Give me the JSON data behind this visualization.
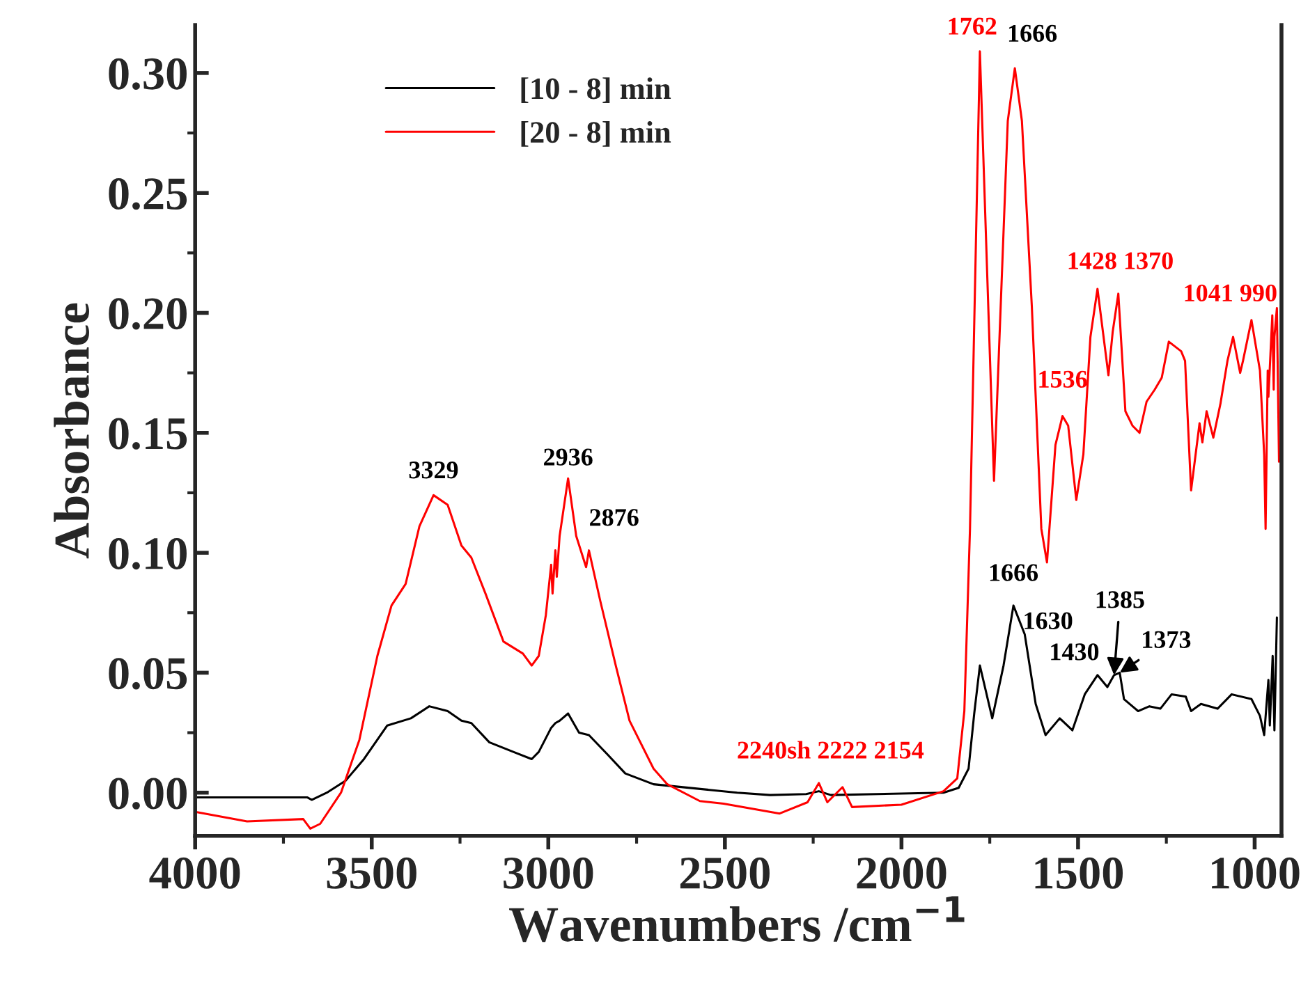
{
  "chart_data": {
    "type": "line",
    "xlabel": "Wavenumbers /cm$^{−1}$",
    "ylabel": "Absorbance",
    "xlim": [
      4000,
      924
    ],
    "ylim": [
      -0.018,
      0.32
    ],
    "xticks": [
      4000,
      3500,
      3000,
      2500,
      2000,
      1500,
      1000
    ],
    "yticks": [
      {
        "value": 0,
        "label": "0.00"
      },
      {
        "value": 0.05,
        "label": "0.05"
      },
      {
        "value": 0.1,
        "label": "0.10"
      },
      {
        "value": 0.15,
        "label": "0.15"
      },
      {
        "value": 0.2,
        "label": "0.20"
      },
      {
        "value": 0.25,
        "label": "0.25"
      },
      {
        "value": 0.3,
        "label": "0.30"
      }
    ],
    "grid": false,
    "legend": "top left",
    "marker": "none",
    "line_style": "solid",
    "series": [
      {
        "name": "[10 - 8] min",
        "color": "#000000",
        "x": [
          4000,
          3682,
          3670,
          3627,
          3574,
          3522,
          3456,
          3389,
          3337,
          3285,
          3246,
          3218,
          3167,
          3099,
          3047,
          3027,
          2992,
          2980,
          2968,
          2944,
          2913,
          2885,
          2833,
          2782,
          2702,
          2465,
          2372,
          2270,
          2234,
          2200,
          1881,
          1838,
          1810,
          1794,
          1778,
          1743,
          1711,
          1683,
          1651,
          1620,
          1592,
          1552,
          1516,
          1481,
          1445,
          1417,
          1398,
          1382,
          1370,
          1330,
          1298,
          1267,
          1235,
          1195,
          1180,
          1152,
          1105,
          1065,
          1009,
          985,
          973,
          965,
          961,
          957,
          949,
          944,
          937
        ],
        "values": [
          -0.002,
          -0.002,
          -0.003,
          0.0,
          0.005,
          0.014,
          0.028,
          0.031,
          0.036,
          0.034,
          0.03,
          0.029,
          0.021,
          0.017,
          0.014,
          0.017,
          0.027,
          0.029,
          0.03,
          0.033,
          0.025,
          0.024,
          0.016,
          0.008,
          0.0035,
          0.0,
          -0.001,
          -0.0006,
          0.0006,
          -0.001,
          0.0,
          0.002,
          0.01,
          0.033,
          0.053,
          0.031,
          0.053,
          0.078,
          0.066,
          0.037,
          0.024,
          0.031,
          0.026,
          0.041,
          0.049,
          0.044,
          0.049,
          0.05,
          0.039,
          0.034,
          0.036,
          0.035,
          0.041,
          0.04,
          0.034,
          0.037,
          0.035,
          0.041,
          0.039,
          0.032,
          0.024,
          null,
          0.047,
          0.028,
          0.057,
          0.026,
          0.073
        ]
      },
      {
        "name": "[20 - 8] min",
        "color": "#ff0000",
        "x": [
          4000,
          3853,
          3694,
          3674,
          3646,
          3587,
          3535,
          3484,
          3444,
          3404,
          3365,
          3325,
          3285,
          3246,
          3218,
          3178,
          3127,
          3072,
          3047,
          3027,
          3007,
          2992,
          2988,
          2980,
          2976,
          2968,
          2944,
          2921,
          2893,
          2885,
          2853,
          2809,
          2770,
          2702,
          2663,
          2571,
          2504,
          2345,
          2266,
          2234,
          2210,
          2167,
          2140,
          2000,
          1881,
          1842,
          1822,
          1810,
          1806,
          1778,
          1738,
          1699,
          1679,
          1659,
          1631,
          1604,
          1588,
          1564,
          1544,
          1528,
          1505,
          1485,
          1465,
          1445,
          1414,
          1402,
          1386,
          1366,
          1346,
          1326,
          1306,
          1283,
          1263,
          1243,
          1208,
          1197,
          1180,
          1156,
          1148,
          1136,
          1117,
          1097,
          1077,
          1061,
          1041,
          1033,
          1009,
          985,
          973,
          969,
          963,
          961,
          950,
          946,
          944,
          937,
          931
        ],
        "values": [
          -0.008,
          -0.012,
          -0.011,
          -0.015,
          -0.013,
          0.0,
          0.022,
          0.057,
          0.078,
          0.087,
          0.111,
          0.124,
          0.12,
          0.103,
          0.098,
          0.083,
          0.063,
          0.058,
          0.053,
          0.057,
          0.074,
          0.095,
          0.083,
          0.101,
          0.09,
          0.107,
          0.131,
          0.107,
          0.094,
          0.101,
          0.08,
          0.053,
          0.03,
          0.01,
          0.0035,
          -0.0035,
          -0.0046,
          -0.0087,
          -0.004,
          0.004,
          -0.004,
          0.0023,
          -0.006,
          -0.005,
          0.0006,
          0.006,
          0.034,
          0.091,
          0.11,
          0.309,
          0.13,
          0.28,
          0.302,
          0.28,
          0.203,
          0.11,
          0.096,
          0.145,
          0.157,
          0.153,
          0.122,
          0.141,
          0.19,
          0.21,
          0.174,
          0.192,
          0.208,
          0.159,
          0.153,
          0.15,
          0.163,
          0.168,
          0.173,
          0.188,
          0.184,
          0.18,
          0.126,
          0.154,
          0.146,
          0.159,
          0.148,
          0.162,
          0.18,
          0.19,
          0.175,
          0.18,
          0.197,
          0.176,
          0.141,
          0.11,
          0.176,
          0.165,
          0.199,
          0.168,
          0.19,
          0.202,
          0.138
        ]
      }
    ],
    "annotations": [
      {
        "text": "3329",
        "x": 3325,
        "y": 0.124
      },
      {
        "text": "2936",
        "x": 2944,
        "y": 0.131
      },
      {
        "text": "2876",
        "x": 2885,
        "y": 0.101
      },
      {
        "text": "2240sh 2222 2154",
        "x": 2234,
        "y": 0.004
      },
      {
        "text": "1762",
        "x": 1778,
        "y": 0.309
      },
      {
        "text": "1666",
        "x": 1679,
        "y": 0.302
      },
      {
        "text": "1536",
        "x": 1544,
        "y": 0.157
      },
      {
        "text": "1428 1370",
        "x": 1386,
        "y": 0.208
      },
      {
        "text": "1041 990",
        "x": 1009,
        "y": 0.197
      },
      {
        "text": "1666",
        "x": 1683,
        "y": 0.078
      },
      {
        "text": "1630",
        "x": 1651,
        "y": 0.066
      },
      {
        "text": "1430",
        "x": 1445,
        "y": 0.049
      },
      {
        "text": "1385",
        "x": 1398,
        "y": 0.049
      },
      {
        "text": "1373",
        "x": 1382,
        "y": 0.05
      }
    ]
  }
}
